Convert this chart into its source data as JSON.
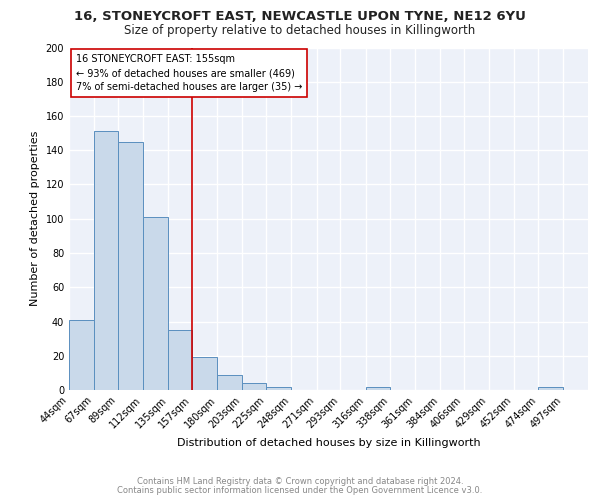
{
  "title1": "16, STONEYCROFT EAST, NEWCASTLE UPON TYNE, NE12 6YU",
  "title2": "Size of property relative to detached houses in Killingworth",
  "xlabel": "Distribution of detached houses by size in Killingworth",
  "ylabel": "Number of detached properties",
  "bar_edges": [
    44,
    67,
    89,
    112,
    135,
    157,
    180,
    203,
    225,
    248,
    271,
    293,
    316,
    338,
    361,
    384,
    406,
    429,
    452,
    474,
    497
  ],
  "bar_heights": [
    41,
    151,
    145,
    101,
    35,
    19,
    9,
    4,
    2,
    0,
    0,
    0,
    2,
    0,
    0,
    0,
    0,
    0,
    0,
    2,
    0
  ],
  "bar_color": "#c9d9ea",
  "bar_edge_color": "#5a8fbf",
  "reference_line_x": 157,
  "reference_line_color": "#cc0000",
  "annotation_text": "16 STONEYCROFT EAST: 155sqm\n← 93% of detached houses are smaller (469)\n7% of semi-detached houses are larger (35) →",
  "annotation_box_color": "#ffffff",
  "annotation_box_edge_color": "#cc0000",
  "ylim": [
    0,
    200
  ],
  "yticks": [
    0,
    20,
    40,
    60,
    80,
    100,
    120,
    140,
    160,
    180,
    200
  ],
  "tick_labels": [
    "44sqm",
    "67sqm",
    "89sqm",
    "112sqm",
    "135sqm",
    "157sqm",
    "180sqm",
    "203sqm",
    "225sqm",
    "248sqm",
    "271sqm",
    "293sqm",
    "316sqm",
    "338sqm",
    "361sqm",
    "384sqm",
    "406sqm",
    "429sqm",
    "452sqm",
    "474sqm",
    "497sqm"
  ],
  "footnote1": "Contains HM Land Registry data © Crown copyright and database right 2024.",
  "footnote2": "Contains public sector information licensed under the Open Government Licence v3.0.",
  "bg_color": "#edf1f9",
  "grid_color": "#ffffff",
  "title_fontsize": 9.5,
  "subtitle_fontsize": 8.5,
  "axis_label_fontsize": 8,
  "tick_fontsize": 7,
  "footnote_fontsize": 6,
  "annot_fontsize": 7
}
